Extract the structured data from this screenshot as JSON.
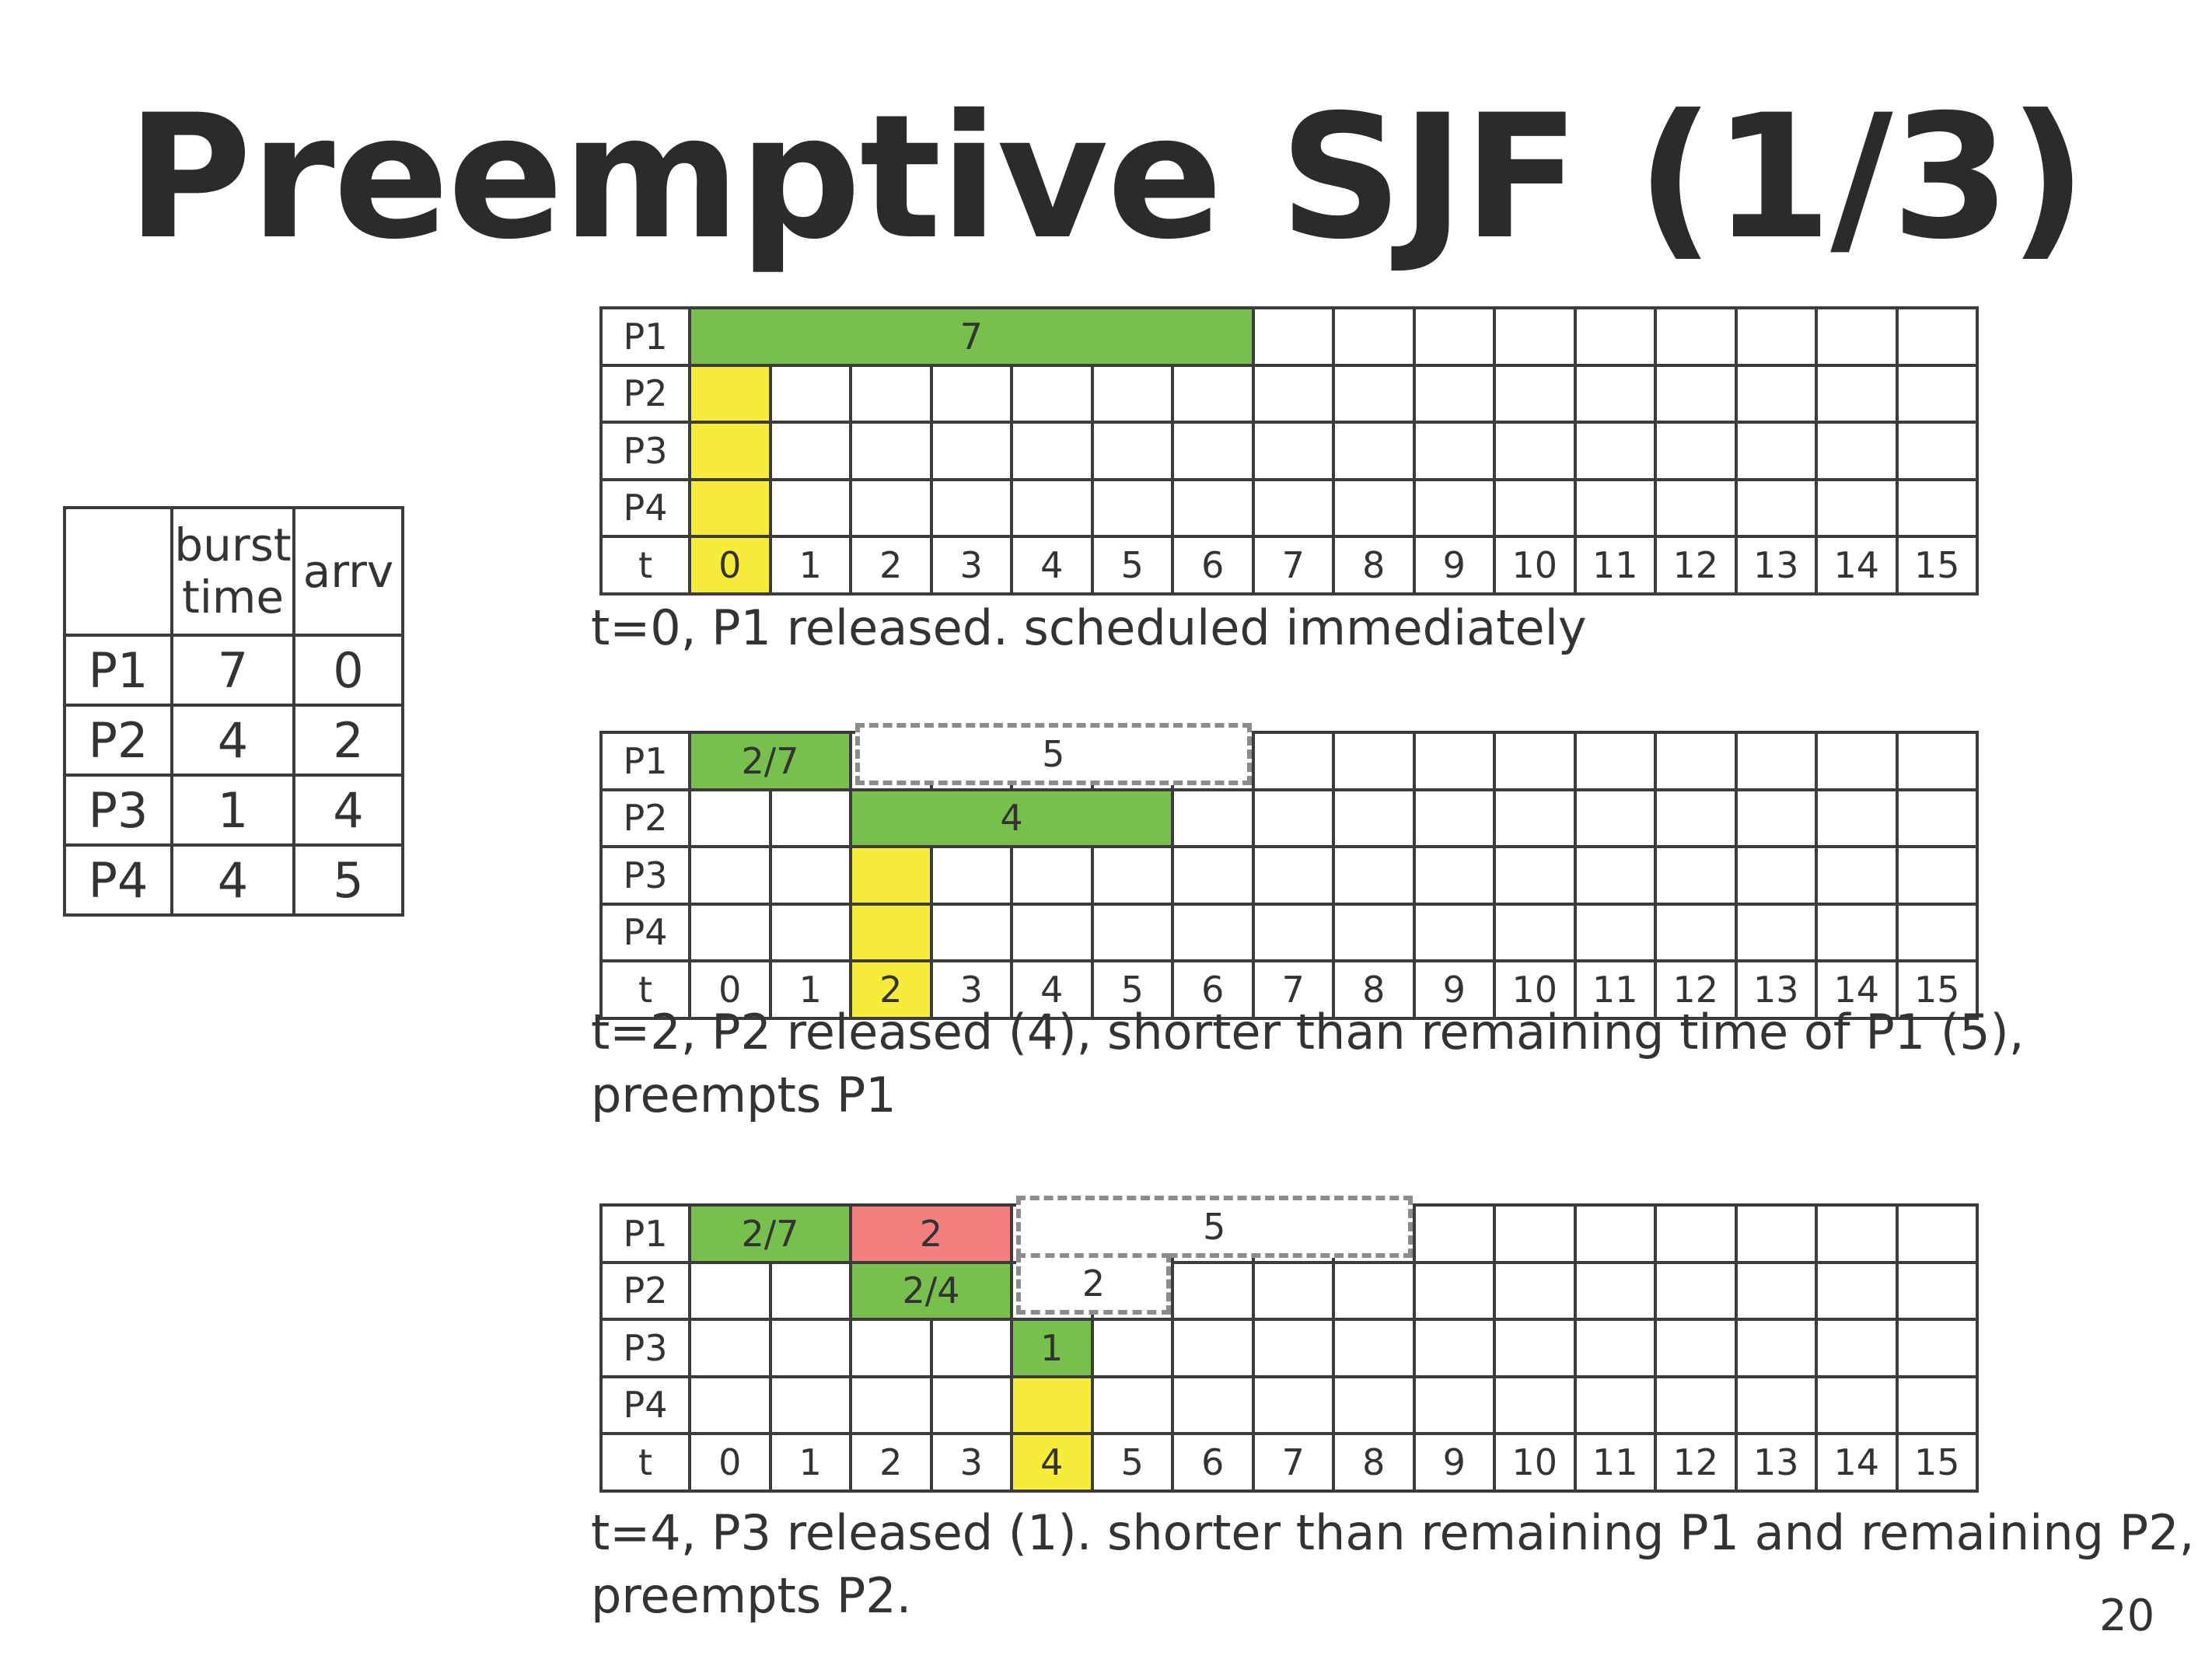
{
  "title": "Preemptive SJF (1/3)",
  "process_table": {
    "headers": [
      "",
      "burst\ntime",
      "arrv"
    ],
    "rows": [
      {
        "name": "P1",
        "burst": "7",
        "arrival": "0"
      },
      {
        "name": "P2",
        "burst": "4",
        "arrival": "2"
      },
      {
        "name": "P3",
        "burst": "1",
        "arrival": "4"
      },
      {
        "name": "P4",
        "burst": "4",
        "arrival": "5"
      }
    ]
  },
  "colors": {
    "running": "#77c04e",
    "released": "#f7ec39",
    "preempted": "#f38080"
  },
  "gantt_charts": [
    {
      "row_labels": [
        "P1",
        "P2",
        "P3",
        "P4"
      ],
      "time_label": "t",
      "ticks": [
        "0",
        "1",
        "2",
        "3",
        "4",
        "5",
        "6",
        "7",
        "8",
        "9",
        "10",
        "11",
        "12",
        "13",
        "14",
        "15"
      ],
      "highlight_tick": 0,
      "bars": [
        {
          "row": 0,
          "start": 0,
          "end": 7,
          "label": "7",
          "kind": "running"
        },
        {
          "row": 1,
          "start": 0,
          "end": 1,
          "label": "",
          "kind": "released"
        },
        {
          "row": 2,
          "start": 0,
          "end": 1,
          "label": "",
          "kind": "released"
        },
        {
          "row": 3,
          "start": 0,
          "end": 1,
          "label": "",
          "kind": "released"
        }
      ],
      "ghosts": [],
      "caption": [
        "t=0, P1 released. scheduled immediately"
      ]
    },
    {
      "row_labels": [
        "P1",
        "P2",
        "P3",
        "P4"
      ],
      "time_label": "t",
      "ticks": [
        "0",
        "1",
        "2",
        "3",
        "4",
        "5",
        "6",
        "7",
        "8",
        "9",
        "10",
        "11",
        "12",
        "13",
        "14",
        "15"
      ],
      "highlight_tick": 2,
      "bars": [
        {
          "row": 0,
          "start": 0,
          "end": 2,
          "label": "2/7",
          "kind": "running"
        },
        {
          "row": 1,
          "start": 2,
          "end": 6,
          "label": "4",
          "kind": "running"
        },
        {
          "row": 2,
          "start": 2,
          "end": 3,
          "label": "",
          "kind": "released"
        },
        {
          "row": 3,
          "start": 2,
          "end": 3,
          "label": "",
          "kind": "released"
        }
      ],
      "ghosts": [
        {
          "row": 0,
          "start": 2,
          "end": 7,
          "label": "5"
        }
      ],
      "caption": [
        "t=2, P2 released (4), shorter than remaining time of P1 (5),",
        "preempts P1"
      ]
    },
    {
      "row_labels": [
        "P1",
        "P2",
        "P3",
        "P4"
      ],
      "time_label": "t",
      "ticks": [
        "0",
        "1",
        "2",
        "3",
        "4",
        "5",
        "6",
        "7",
        "8",
        "9",
        "10",
        "11",
        "12",
        "13",
        "14",
        "15"
      ],
      "highlight_tick": 4,
      "bars": [
        {
          "row": 0,
          "start": 0,
          "end": 2,
          "label": "2/7",
          "kind": "running"
        },
        {
          "row": 0,
          "start": 2,
          "end": 4,
          "label": "2",
          "kind": "preempted"
        },
        {
          "row": 1,
          "start": 2,
          "end": 4,
          "label": "2/4",
          "kind": "running"
        },
        {
          "row": 2,
          "start": 4,
          "end": 5,
          "label": "1",
          "kind": "running"
        },
        {
          "row": 3,
          "start": 4,
          "end": 5,
          "label": "",
          "kind": "released"
        }
      ],
      "ghosts": [
        {
          "row": 0,
          "start": 4,
          "end": 9,
          "label": "5"
        },
        {
          "row": 1,
          "start": 4,
          "end": 6,
          "label": "2"
        }
      ],
      "caption": [
        "t=4, P3 released (1). shorter than remaining P1 and remaining P2,",
        "preempts P2."
      ]
    }
  ],
  "page_number": "20"
}
